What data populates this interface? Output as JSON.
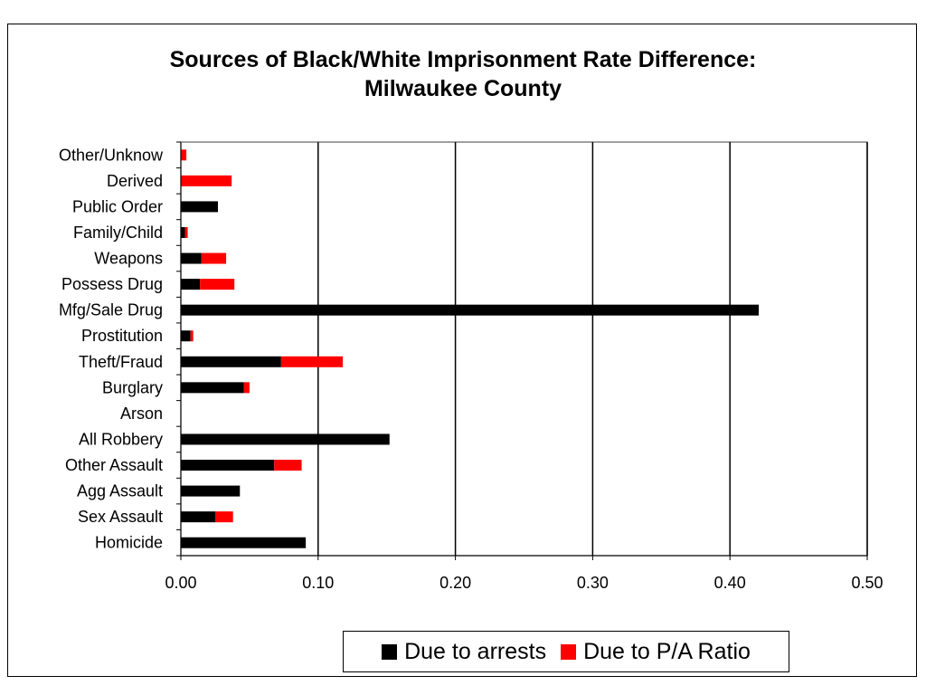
{
  "title": [
    "Sources of Black/White Imprisonment Rate Difference:",
    "Milwaukee County"
  ],
  "colors": {
    "arrests": "#000000",
    "pa_ratio": "#ff0000"
  },
  "chart_data": {
    "type": "bar",
    "orientation": "horizontal",
    "stacked": true,
    "categories": [
      "Other/Unknow",
      "Derived",
      "Public Order",
      "Family/Child",
      "Weapons",
      "Possess Drug",
      "Mfg/Sale Drug",
      "Prostitution",
      "Theft/Fraud",
      "Burglary",
      "Arson",
      "All Robbery",
      "Other Assault",
      "Agg Assault",
      "Sex Assault",
      "Homicide"
    ],
    "series": [
      {
        "name": "Due to arrests",
        "values": [
          0.0,
          0.0,
          0.027,
          0.003,
          0.015,
          0.014,
          0.421,
          0.007,
          0.073,
          0.046,
          0.0,
          0.152,
          0.068,
          0.043,
          0.025,
          0.091
        ]
      },
      {
        "name": "Due to P/A Ratio",
        "values": [
          0.004,
          0.037,
          0.0,
          0.002,
          0.018,
          0.025,
          0.0,
          0.002,
          0.045,
          0.004,
          0.0,
          0.0,
          0.02,
          0.0,
          0.013,
          0.0
        ]
      }
    ],
    "xlim": [
      0,
      0.5
    ],
    "xticks": [
      "0.00",
      "0.10",
      "0.20",
      "0.30",
      "0.40",
      "0.50"
    ],
    "xtick_values": [
      0,
      0.1,
      0.2,
      0.3,
      0.4,
      0.5
    ],
    "gridlines": "vertical",
    "legend": "bottom"
  }
}
